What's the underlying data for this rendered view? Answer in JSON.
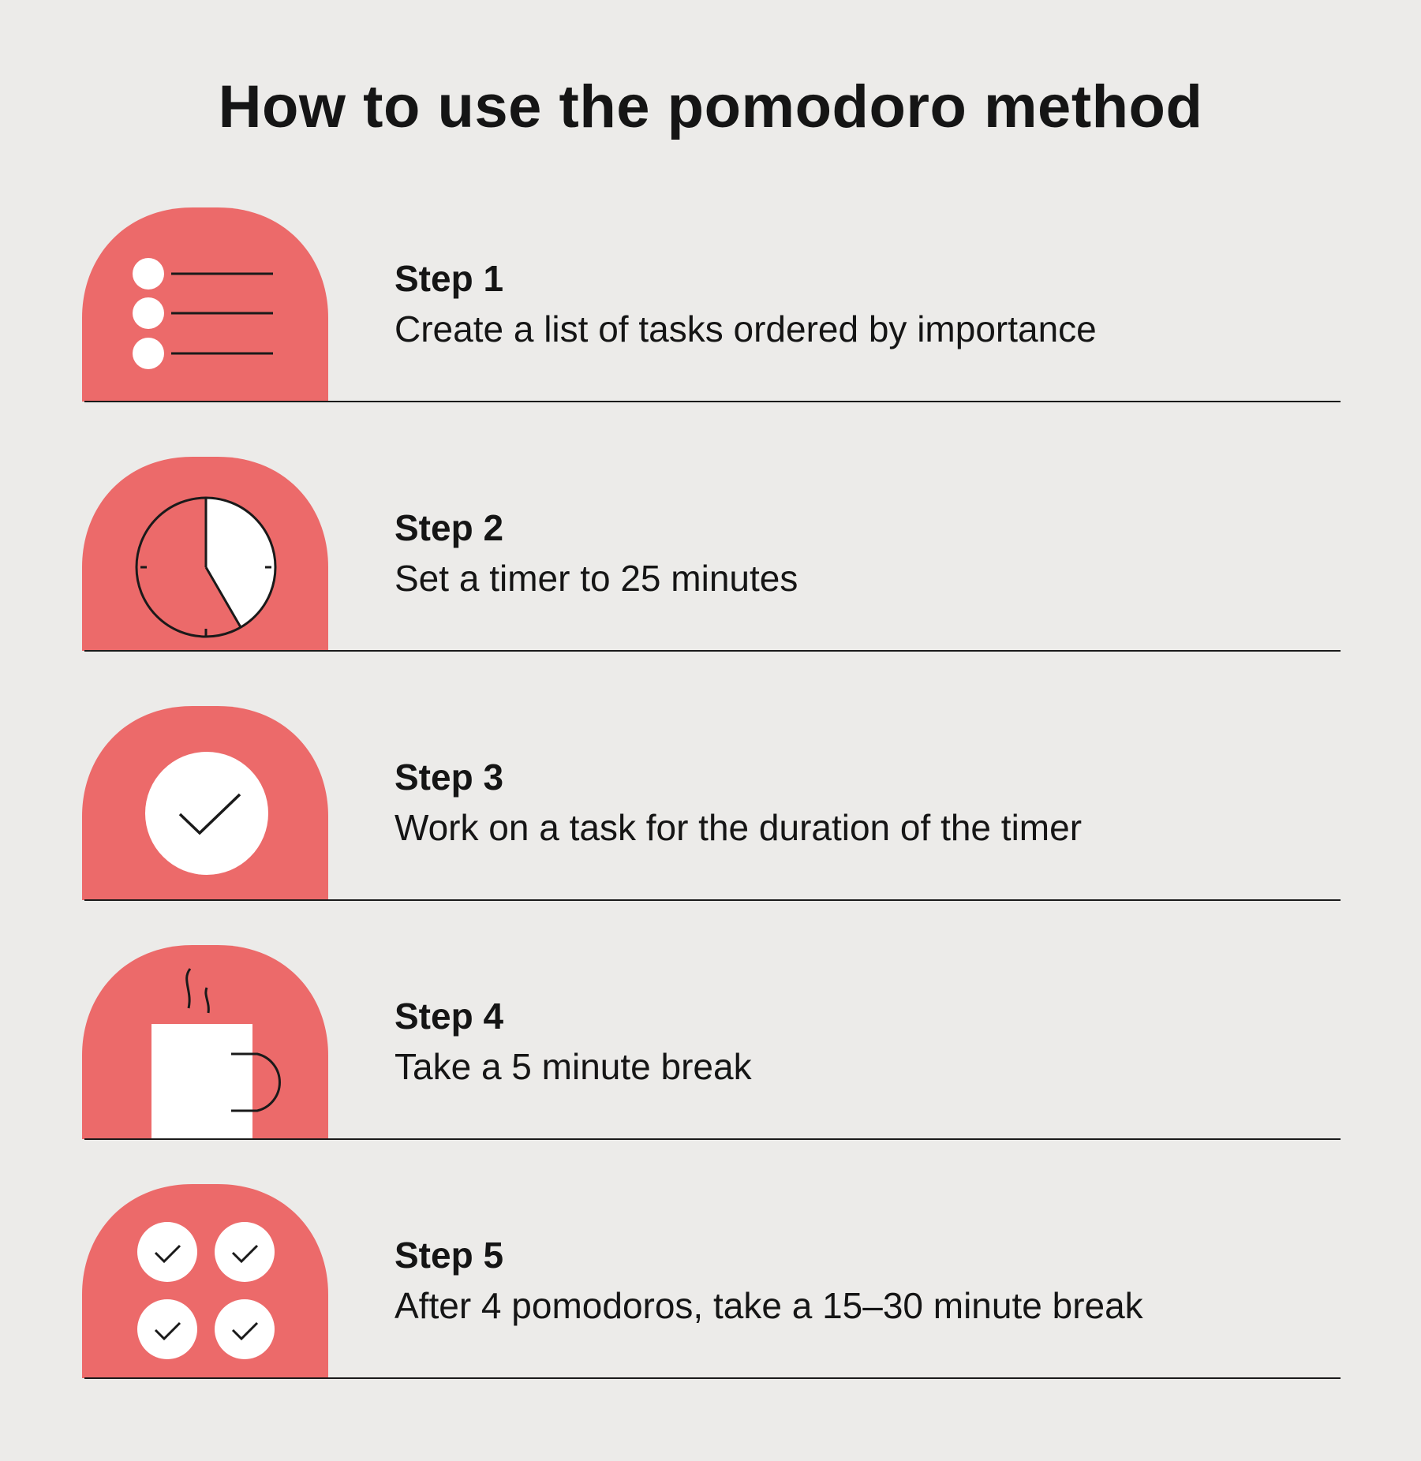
{
  "title": "How to use the pomodoro method",
  "colors": {
    "background": "#ecebe9",
    "accent": "#ec6a6a",
    "text": "#151515",
    "icon_fill": "#ffffff"
  },
  "steps": [
    {
      "title": "Step 1",
      "description": "Create a list of tasks ordered by importance",
      "icon": "task-list-icon"
    },
    {
      "title": "Step 2",
      "description": "Set a timer to 25 minutes",
      "icon": "timer-icon"
    },
    {
      "title": "Step 3",
      "description": "Work on a task for the duration of the timer",
      "icon": "checkmark-icon"
    },
    {
      "title": "Step 4",
      "description": "Take a 5 minute break",
      "icon": "coffee-mug-icon"
    },
    {
      "title": "Step 5",
      "description": "After 4 pomodoros, take a 15–30 minute break",
      "icon": "four-checkmarks-icon"
    }
  ]
}
